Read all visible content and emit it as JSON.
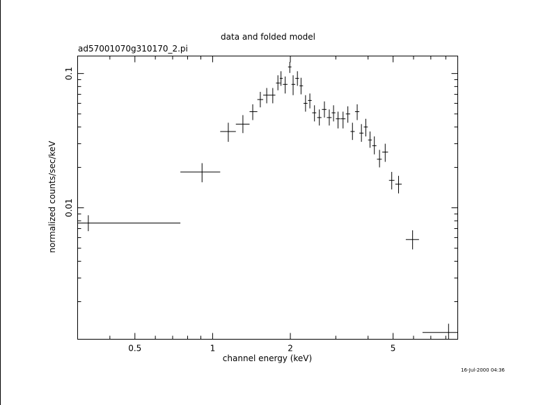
{
  "chart_data": {
    "type": "scatter",
    "title": "data and folded model",
    "subtitle": "ad57001070g310170_2.pi",
    "xlabel": "channel energy (keV)",
    "ylabel": "normalized counts/sec/keV",
    "xscale": "log",
    "yscale": "log",
    "xlim": [
      0.3,
      8.9
    ],
    "ylim": [
      0.00105,
      0.135
    ],
    "x_ticks": [
      0.5,
      1,
      2,
      5
    ],
    "x_tick_labels": [
      "0.5",
      "1",
      "2",
      "5"
    ],
    "y_ticks": [
      0.01,
      0.1
    ],
    "y_tick_labels": [
      "0.01",
      "0.1"
    ],
    "grid": false,
    "series": [
      {
        "points": [
          {
            "x": 0.33,
            "xlo": 0.3,
            "xhi": 0.75,
            "y": 0.0077,
            "ylo": 0.0067,
            "yhi": 0.0088
          },
          {
            "x": 0.91,
            "xlo": 0.75,
            "xhi": 1.07,
            "y": 0.0185,
            "ylo": 0.0155,
            "yhi": 0.0215
          },
          {
            "x": 1.15,
            "xlo": 1.07,
            "xhi": 1.23,
            "y": 0.037,
            "ylo": 0.031,
            "yhi": 0.043
          },
          {
            "x": 1.31,
            "xlo": 1.23,
            "xhi": 1.39,
            "y": 0.042,
            "ylo": 0.036,
            "yhi": 0.049
          },
          {
            "x": 1.43,
            "xlo": 1.39,
            "xhi": 1.49,
            "y": 0.052,
            "ylo": 0.045,
            "yhi": 0.059
          },
          {
            "x": 1.53,
            "xlo": 1.49,
            "xhi": 1.57,
            "y": 0.064,
            "ylo": 0.056,
            "yhi": 0.073
          },
          {
            "x": 1.62,
            "xlo": 1.57,
            "xhi": 1.67,
            "y": 0.069,
            "ylo": 0.06,
            "yhi": 0.078
          },
          {
            "x": 1.71,
            "xlo": 1.67,
            "xhi": 1.75,
            "y": 0.069,
            "ylo": 0.06,
            "yhi": 0.078
          },
          {
            "x": 1.79,
            "xlo": 1.76,
            "xhi": 1.83,
            "y": 0.085,
            "ylo": 0.075,
            "yhi": 0.097
          },
          {
            "x": 1.84,
            "xlo": 1.82,
            "xhi": 1.87,
            "y": 0.092,
            "ylo": 0.081,
            "yhi": 0.104
          },
          {
            "x": 1.91,
            "xlo": 1.87,
            "xhi": 1.95,
            "y": 0.083,
            "ylo": 0.071,
            "yhi": 0.095
          },
          {
            "x": 1.99,
            "xlo": 1.96,
            "xhi": 2.02,
            "y": 0.112,
            "ylo": 0.101,
            "yhi": 0.122
          },
          {
            "x": 2.05,
            "xlo": 2.02,
            "xhi": 2.09,
            "y": 0.083,
            "ylo": 0.069,
            "yhi": 0.097
          },
          {
            "x": 2.13,
            "xlo": 2.09,
            "xhi": 2.16,
            "y": 0.092,
            "ylo": 0.081,
            "yhi": 0.104
          },
          {
            "x": 2.2,
            "xlo": 2.17,
            "xhi": 2.24,
            "y": 0.081,
            "ylo": 0.07,
            "yhi": 0.093
          },
          {
            "x": 2.29,
            "xlo": 2.25,
            "xhi": 2.33,
            "y": 0.06,
            "ylo": 0.052,
            "yhi": 0.069
          },
          {
            "x": 2.38,
            "xlo": 2.34,
            "xhi": 2.42,
            "y": 0.063,
            "ylo": 0.055,
            "yhi": 0.071
          },
          {
            "x": 2.48,
            "xlo": 2.43,
            "xhi": 2.52,
            "y": 0.051,
            "ylo": 0.044,
            "yhi": 0.058
          },
          {
            "x": 2.59,
            "xlo": 2.54,
            "xhi": 2.64,
            "y": 0.047,
            "ylo": 0.041,
            "yhi": 0.054
          },
          {
            "x": 2.71,
            "xlo": 2.65,
            "xhi": 2.76,
            "y": 0.054,
            "ylo": 0.047,
            "yhi": 0.062
          },
          {
            "x": 2.83,
            "xlo": 2.77,
            "xhi": 2.89,
            "y": 0.047,
            "ylo": 0.041,
            "yhi": 0.054
          },
          {
            "x": 2.94,
            "xlo": 2.89,
            "xhi": 2.99,
            "y": 0.051,
            "ylo": 0.044,
            "yhi": 0.058
          },
          {
            "x": 3.06,
            "xlo": 3.0,
            "xhi": 3.12,
            "y": 0.046,
            "ylo": 0.039,
            "yhi": 0.052
          },
          {
            "x": 3.2,
            "xlo": 3.13,
            "xhi": 3.27,
            "y": 0.046,
            "ylo": 0.039,
            "yhi": 0.052
          },
          {
            "x": 3.34,
            "xlo": 3.28,
            "xhi": 3.41,
            "y": 0.05,
            "ylo": 0.043,
            "yhi": 0.057
          },
          {
            "x": 3.48,
            "xlo": 3.42,
            "xhi": 3.55,
            "y": 0.037,
            "ylo": 0.032,
            "yhi": 0.043
          },
          {
            "x": 3.63,
            "xlo": 3.56,
            "xhi": 3.7,
            "y": 0.052,
            "ylo": 0.045,
            "yhi": 0.059
          },
          {
            "x": 3.77,
            "xlo": 3.7,
            "xhi": 3.84,
            "y": 0.036,
            "ylo": 0.031,
            "yhi": 0.042
          },
          {
            "x": 3.92,
            "xlo": 3.85,
            "xhi": 3.99,
            "y": 0.04,
            "ylo": 0.034,
            "yhi": 0.046
          },
          {
            "x": 4.07,
            "xlo": 4.0,
            "xhi": 4.14,
            "y": 0.032,
            "ylo": 0.028,
            "yhi": 0.037
          },
          {
            "x": 4.23,
            "xlo": 4.15,
            "xhi": 4.31,
            "y": 0.029,
            "ylo": 0.025,
            "yhi": 0.034
          },
          {
            "x": 4.43,
            "xlo": 4.33,
            "xhi": 4.52,
            "y": 0.023,
            "ylo": 0.02,
            "yhi": 0.027
          },
          {
            "x": 4.66,
            "xlo": 4.54,
            "xhi": 4.78,
            "y": 0.026,
            "ylo": 0.022,
            "yhi": 0.03
          },
          {
            "x": 4.94,
            "xlo": 4.82,
            "xhi": 5.06,
            "y": 0.016,
            "ylo": 0.0137,
            "yhi": 0.0185
          },
          {
            "x": 5.25,
            "xlo": 5.1,
            "xhi": 5.4,
            "y": 0.015,
            "ylo": 0.0128,
            "yhi": 0.0173
          },
          {
            "x": 5.95,
            "xlo": 5.6,
            "xhi": 6.3,
            "y": 0.0058,
            "ylo": 0.0049,
            "yhi": 0.0068
          },
          {
            "x": 8.2,
            "xlo": 6.5,
            "xhi": 8.9,
            "y": 0.00118,
            "ylo": 0.00105,
            "yhi": 0.00137
          }
        ]
      }
    ]
  },
  "timestamp": "16-Jul-2000 04:36"
}
